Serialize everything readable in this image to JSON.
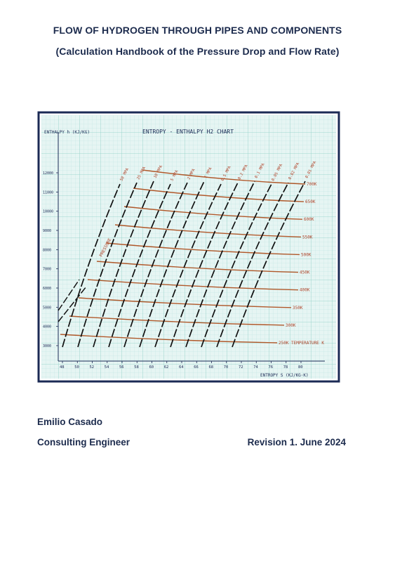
{
  "document": {
    "title": "FLOW OF HYDROGEN THROUGH PIPES AND COMPONENTS",
    "subtitle": "(Calculation Handbook of the Pressure Drop and Flow Rate)",
    "author_name": "Emilio Casado",
    "author_role": "Consulting Engineer",
    "revision": "Revision 1. June 2024"
  },
  "chart_data": {
    "type": "line",
    "title": "ENTROPY - ENTHALPY H2 CHART",
    "xlabel": "ENTROPY S (KJ/KG·K)",
    "ylabel": "ENTHALPY h (KJ/KG)",
    "x_ticks": [
      "48",
      "50",
      "52",
      "54",
      "56",
      "58",
      "60",
      "62",
      "64",
      "66",
      "68",
      "70",
      "72",
      "74",
      "76",
      "78",
      "80"
    ],
    "y_ticks": [
      "12000",
      "11000",
      "10000",
      "9000",
      "8000",
      "7000",
      "6000",
      "5000",
      "4000",
      "3000"
    ],
    "temperature_lines": [
      "700K",
      "650K",
      "600K",
      "550K",
      "500K",
      "450K",
      "400K",
      "350K",
      "300K",
      "250K  TEMPERATURE K"
    ],
    "pressure_lines": [
      "PRESSURE",
      "50 MPA",
      "25 MPA",
      "10 MPA",
      "5 MPA",
      "2 MPA",
      "1 MPA",
      "0.5 MPA",
      "0.2 MPA",
      "0.1 MPA",
      "0.05 MPA",
      "0.02 MPA",
      "0.01 MPA"
    ],
    "colors": {
      "paper": "#e6f5f3",
      "grid": "#9fd6cf",
      "temperature_lines": "#b0582a",
      "pressure_lines": "#111111",
      "labels": "#b0442a",
      "frame": "#1b2a55"
    }
  }
}
